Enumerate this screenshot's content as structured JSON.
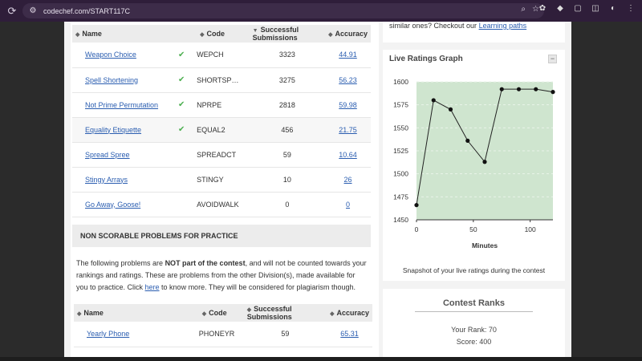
{
  "browser": {
    "url": "codechef.com/START117C",
    "reload_icon": "reload-icon",
    "site_icon": "site-info-icon"
  },
  "scorable_table": {
    "headers": {
      "name": "Name",
      "code": "Code",
      "subs": "Successful Submissions",
      "accuracy": "Accuracy"
    },
    "rows": [
      {
        "name": "Weapon Choice",
        "solved": true,
        "code": "WEPCH",
        "subs": "3323",
        "accuracy": "44.91"
      },
      {
        "name": "Spell Shortening",
        "solved": true,
        "code": "SHORTSP…",
        "subs": "3275",
        "accuracy": "56.23"
      },
      {
        "name": "Not Prime Permutation",
        "solved": true,
        "code": "NPRPE",
        "subs": "2818",
        "accuracy": "59.98"
      },
      {
        "name": "Equality Etiquette",
        "solved": true,
        "code": "EQUAL2",
        "subs": "456",
        "accuracy": "21.75"
      },
      {
        "name": "Spread Spree",
        "solved": false,
        "code": "SPREADCT",
        "subs": "59",
        "accuracy": "10.64"
      },
      {
        "name": "Stingy Arrays",
        "solved": false,
        "code": "STINGY",
        "subs": "10",
        "accuracy": "26"
      },
      {
        "name": "Go Away, Goose!",
        "solved": false,
        "code": "AVOIDWALK",
        "subs": "0",
        "accuracy": "0"
      }
    ]
  },
  "practice": {
    "title": "NON SCORABLE PROBLEMS FOR PRACTICE",
    "para_1": "The following problems are ",
    "para_bold": "NOT part of the contest",
    "para_2": ", and will not be counted towards your rankings and ratings. These are problems from the other Division(s), made available for you to practice. Click ",
    "para_link": "here",
    "para_3": " to know more. They will be considered for plagiarism though.",
    "headers": {
      "name": "Name",
      "code": "Code",
      "subs": "Successful Submissions",
      "accuracy": "Accuracy"
    },
    "rows": [
      {
        "name": "Yearly Phone",
        "code": "PHONEYR",
        "subs": "59",
        "accuracy": "65.31"
      }
    ]
  },
  "right_top": {
    "text": "similar ones? Checkout our ",
    "link": "Learning paths"
  },
  "graph": {
    "title": "Live Ratings Graph",
    "collapse": "−",
    "caption": "Snapshot of your live ratings during the contest"
  },
  "chart_data": {
    "type": "line",
    "xlabel": "Minutes",
    "ylabel": "",
    "xlim": [
      0,
      120
    ],
    "ylim": [
      1450,
      1600
    ],
    "xticks": [
      0,
      50,
      100
    ],
    "yticks": [
      1450,
      1475,
      1500,
      1525,
      1550,
      1575,
      1600
    ],
    "x": [
      0,
      15,
      30,
      45,
      60,
      75,
      90,
      105,
      120
    ],
    "y": [
      1466,
      1580,
      1570,
      1536,
      1513,
      1592,
      1592,
      1592,
      1589
    ],
    "fill_color": "#cfe5cf",
    "line_color": "#222222"
  },
  "ranks": {
    "title": "Contest Ranks",
    "rank_label": "Your Rank: 70",
    "score_label": "Score: 400"
  }
}
